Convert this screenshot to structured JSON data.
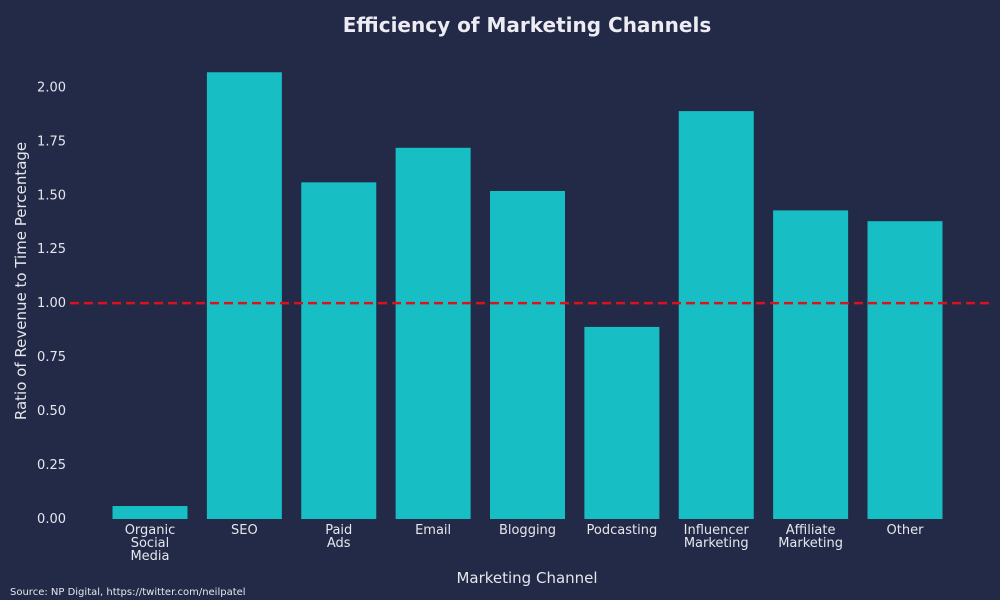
{
  "chart_data": {
    "type": "bar",
    "title": "Efficiency of Marketing Channels",
    "xlabel": "Marketing Channel",
    "ylabel": "Ratio of Revenue to Time Percentage",
    "categories": [
      "Organic\nSocial\nMedia",
      "SEO",
      "Paid\nAds",
      "Email",
      "Blogging",
      "Podcasting",
      "Influencer\nMarketing",
      "Affiliate\nMarketing",
      "Other"
    ],
    "values": [
      0.06,
      2.07,
      1.56,
      1.72,
      1.52,
      0.89,
      1.89,
      1.43,
      1.38
    ],
    "ylim": [
      0,
      2.15
    ],
    "yticks": [
      "0.00",
      "0.25",
      "0.50",
      "0.75",
      "1.00",
      "1.25",
      "1.50",
      "1.75",
      "2.00"
    ],
    "reference_line": {
      "value": 1.0,
      "style": "dashed"
    },
    "grid": false,
    "source": "Source: NP Digital, https://twitter.com/neilpatel"
  },
  "colors": {
    "background": "#222a48",
    "bar": "#17bfc4",
    "reference_line": "#d9121e",
    "text": "#e6e6ec"
  }
}
